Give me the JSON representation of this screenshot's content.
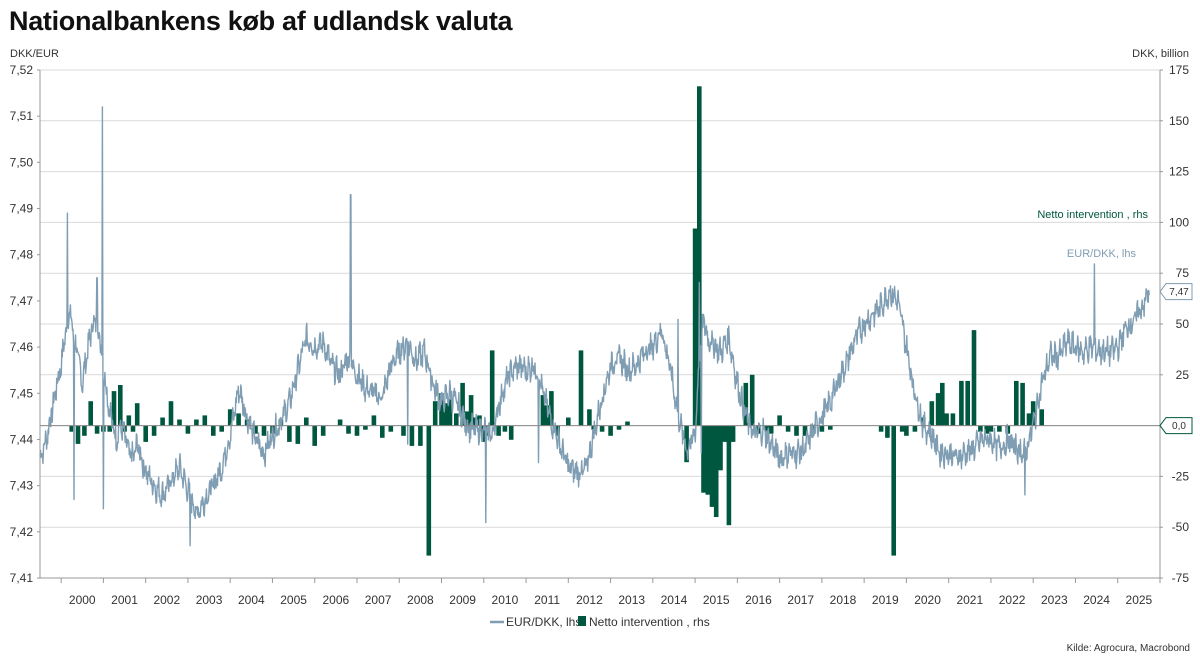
{
  "title": "Nationalbankens køb af udlandsk valuta",
  "source": "Kilde: Agrocura, Macrobond",
  "colors": {
    "eurdkk": "#7f9db3",
    "intervention": "#00573f",
    "grid": "#d9d9d9"
  },
  "chart_data": {
    "type": "line+bar",
    "left_axis": {
      "unit": "DKK/EUR",
      "min": 7.41,
      "max": 7.52,
      "ticks": [
        "7,41",
        "7,42",
        "7,43",
        "7,44",
        "7,45",
        "7,46",
        "7,47",
        "7,48",
        "7,49",
        "7,50",
        "7,51",
        "7,52"
      ]
    },
    "right_axis": {
      "unit": "DKK, billion",
      "min": -75,
      "max": 175,
      "ticks": [
        "-75",
        "-50",
        "-25",
        "0",
        "25",
        "50",
        "75",
        "100",
        "125",
        "150",
        "175"
      ]
    },
    "x_range": [
      1999.5,
      2026
    ],
    "x_ticks": [
      "2000",
      "2001",
      "2002",
      "2003",
      "2004",
      "2005",
      "2006",
      "2007",
      "2008",
      "2009",
      "2010",
      "2011",
      "2012",
      "2013",
      "2014",
      "2015",
      "2016",
      "2017",
      "2018",
      "2019",
      "2020",
      "2021",
      "2022",
      "2023",
      "2024",
      "2025",
      "2026"
    ],
    "legend": [
      {
        "label": "EUR/DKK, lhs"
      },
      {
        "label": "Netto intervention , rhs"
      }
    ],
    "series": [
      {
        "name": "EUR/DKK, lhs",
        "axis": "left",
        "type": "line",
        "points": [
          [
            1999.5,
            7.436
          ],
          [
            1999.65,
            7.44
          ],
          [
            1999.8,
            7.447
          ],
          [
            1999.9,
            7.452
          ],
          [
            2000.0,
            7.456
          ],
          [
            2000.1,
            7.463
          ],
          [
            2000.2,
            7.468
          ],
          [
            2000.3,
            7.462
          ],
          [
            2000.4,
            7.458
          ],
          [
            2000.5,
            7.452
          ],
          [
            2000.6,
            7.458
          ],
          [
            2000.7,
            7.463
          ],
          [
            2000.8,
            7.466
          ],
          [
            2000.9,
            7.463
          ],
          [
            2001.0,
            7.456
          ],
          [
            2001.1,
            7.449
          ],
          [
            2001.2,
            7.444
          ],
          [
            2001.3,
            7.44
          ],
          [
            2001.4,
            7.443
          ],
          [
            2001.5,
            7.441
          ],
          [
            2001.6,
            7.437
          ],
          [
            2001.7,
            7.436
          ],
          [
            2001.8,
            7.439
          ],
          [
            2001.9,
            7.436
          ],
          [
            2002.0,
            7.433
          ],
          [
            2002.2,
            7.43
          ],
          [
            2002.4,
            7.428
          ],
          [
            2002.6,
            7.431
          ],
          [
            2002.8,
            7.434
          ],
          [
            2003.0,
            7.429
          ],
          [
            2003.2,
            7.424
          ],
          [
            2003.4,
            7.427
          ],
          [
            2003.6,
            7.43
          ],
          [
            2003.8,
            7.434
          ],
          [
            2004.0,
            7.441
          ],
          [
            2004.2,
            7.451
          ],
          [
            2004.4,
            7.445
          ],
          [
            2004.6,
            7.44
          ],
          [
            2004.8,
            7.437
          ],
          [
            2005.0,
            7.441
          ],
          [
            2005.2,
            7.444
          ],
          [
            2005.4,
            7.448
          ],
          [
            2005.6,
            7.455
          ],
          [
            2005.8,
            7.462
          ],
          [
            2006.0,
            7.46
          ],
          [
            2006.2,
            7.461
          ],
          [
            2006.4,
            7.456
          ],
          [
            2006.6,
            7.454
          ],
          [
            2006.8,
            7.458
          ],
          [
            2007.0,
            7.454
          ],
          [
            2007.2,
            7.451
          ],
          [
            2007.4,
            7.45
          ],
          [
            2007.6,
            7.449
          ],
          [
            2007.8,
            7.456
          ],
          [
            2008.0,
            7.459
          ],
          [
            2008.2,
            7.461
          ],
          [
            2008.4,
            7.457
          ],
          [
            2008.6,
            7.459
          ],
          [
            2008.8,
            7.452
          ],
          [
            2009.0,
            7.448
          ],
          [
            2009.2,
            7.45
          ],
          [
            2009.4,
            7.447
          ],
          [
            2009.6,
            7.443
          ],
          [
            2009.8,
            7.442
          ],
          [
            2010.0,
            7.442
          ],
          [
            2010.2,
            7.441
          ],
          [
            2010.4,
            7.449
          ],
          [
            2010.6,
            7.454
          ],
          [
            2010.8,
            7.456
          ],
          [
            2011.0,
            7.455
          ],
          [
            2011.2,
            7.456
          ],
          [
            2011.4,
            7.45
          ],
          [
            2011.6,
            7.444
          ],
          [
            2011.8,
            7.439
          ],
          [
            2012.0,
            7.434
          ],
          [
            2012.2,
            7.433
          ],
          [
            2012.4,
            7.433
          ],
          [
            2012.6,
            7.441
          ],
          [
            2012.8,
            7.449
          ],
          [
            2013.0,
            7.456
          ],
          [
            2013.2,
            7.458
          ],
          [
            2013.4,
            7.455
          ],
          [
            2013.6,
            7.456
          ],
          [
            2013.8,
            7.459
          ],
          [
            2014.0,
            7.46
          ],
          [
            2014.2,
            7.464
          ],
          [
            2014.4,
            7.456
          ],
          [
            2014.6,
            7.445
          ],
          [
            2014.8,
            7.438
          ],
          [
            2015.0,
            7.441
          ],
          [
            2015.1,
            7.458
          ],
          [
            2015.2,
            7.466
          ],
          [
            2015.3,
            7.462
          ],
          [
            2015.4,
            7.461
          ],
          [
            2015.6,
            7.459
          ],
          [
            2015.8,
            7.462
          ],
          [
            2016.0,
            7.452
          ],
          [
            2016.2,
            7.445
          ],
          [
            2016.4,
            7.441
          ],
          [
            2016.6,
            7.442
          ],
          [
            2016.8,
            7.439
          ],
          [
            2017.0,
            7.436
          ],
          [
            2017.2,
            7.437
          ],
          [
            2017.4,
            7.437
          ],
          [
            2017.6,
            7.438
          ],
          [
            2017.8,
            7.442
          ],
          [
            2018.0,
            7.445
          ],
          [
            2018.2,
            7.448
          ],
          [
            2018.4,
            7.453
          ],
          [
            2018.6,
            7.457
          ],
          [
            2018.8,
            7.462
          ],
          [
            2019.0,
            7.465
          ],
          [
            2019.2,
            7.467
          ],
          [
            2019.4,
            7.469
          ],
          [
            2019.6,
            7.472
          ],
          [
            2019.8,
            7.47
          ],
          [
            2020.0,
            7.46
          ],
          [
            2020.2,
            7.45
          ],
          [
            2020.4,
            7.443
          ],
          [
            2020.6,
            7.441
          ],
          [
            2020.8,
            7.437
          ],
          [
            2021.0,
            7.437
          ],
          [
            2021.2,
            7.436
          ],
          [
            2021.4,
            7.437
          ],
          [
            2021.6,
            7.438
          ],
          [
            2021.8,
            7.44
          ],
          [
            2022.0,
            7.44
          ],
          [
            2022.2,
            7.438
          ],
          [
            2022.4,
            7.44
          ],
          [
            2022.6,
            7.438
          ],
          [
            2022.8,
            7.437
          ],
          [
            2023.0,
            7.443
          ],
          [
            2023.2,
            7.452
          ],
          [
            2023.4,
            7.458
          ],
          [
            2023.6,
            7.458
          ],
          [
            2023.8,
            7.461
          ],
          [
            2024.0,
            7.46
          ],
          [
            2024.2,
            7.459
          ],
          [
            2024.4,
            7.46
          ],
          [
            2024.6,
            7.459
          ],
          [
            2024.8,
            7.459
          ],
          [
            2025.0,
            7.46
          ],
          [
            2025.2,
            7.464
          ],
          [
            2025.4,
            7.466
          ],
          [
            2025.6,
            7.469
          ],
          [
            2025.75,
            7.472
          ]
        ]
      },
      {
        "name": "Netto intervention , rhs",
        "axis": "right",
        "type": "bar",
        "points": [
          [
            2000.25,
            -3
          ],
          [
            2000.4,
            -9
          ],
          [
            2000.55,
            -5
          ],
          [
            2000.7,
            12
          ],
          [
            2000.85,
            -4
          ],
          [
            2001.0,
            -3
          ],
          [
            2001.15,
            -3
          ],
          [
            2001.25,
            17
          ],
          [
            2001.4,
            20
          ],
          [
            2001.5,
            -3
          ],
          [
            2001.6,
            5
          ],
          [
            2001.7,
            -3
          ],
          [
            2001.8,
            11
          ],
          [
            2002.0,
            -8
          ],
          [
            2002.2,
            -5
          ],
          [
            2002.4,
            4
          ],
          [
            2002.6,
            12
          ],
          [
            2002.8,
            3
          ],
          [
            2003.0,
            -4
          ],
          [
            2003.2,
            3
          ],
          [
            2003.4,
            5
          ],
          [
            2003.6,
            -5
          ],
          [
            2003.8,
            -3
          ],
          [
            2004.0,
            8
          ],
          [
            2004.2,
            6
          ],
          [
            2004.4,
            3
          ],
          [
            2004.6,
            -4
          ],
          [
            2004.8,
            -5
          ],
          [
            2005.0,
            -4
          ],
          [
            2005.2,
            3
          ],
          [
            2005.4,
            -8
          ],
          [
            2005.6,
            -9
          ],
          [
            2005.8,
            4
          ],
          [
            2006.0,
            -10
          ],
          [
            2006.2,
            -5
          ],
          [
            2006.6,
            3
          ],
          [
            2006.8,
            -4
          ],
          [
            2007.0,
            -5
          ],
          [
            2007.2,
            -2
          ],
          [
            2007.4,
            5
          ],
          [
            2007.6,
            -6
          ],
          [
            2007.8,
            -3
          ],
          [
            2008.1,
            -5
          ],
          [
            2008.3,
            -10
          ],
          [
            2008.5,
            -10
          ],
          [
            2008.7,
            -64
          ],
          [
            2008.85,
            12
          ],
          [
            2009.0,
            16
          ],
          [
            2009.1,
            11
          ],
          [
            2009.2,
            13
          ],
          [
            2009.35,
            6
          ],
          [
            2009.5,
            21
          ],
          [
            2009.6,
            7
          ],
          [
            2009.7,
            15
          ],
          [
            2009.8,
            4
          ],
          [
            2009.9,
            5
          ],
          [
            2010.0,
            -8
          ],
          [
            2010.1,
            -5
          ],
          [
            2010.2,
            37
          ],
          [
            2010.35,
            -5
          ],
          [
            2010.5,
            -3
          ],
          [
            2010.65,
            -7
          ],
          [
            2011.4,
            15
          ],
          [
            2011.5,
            10
          ],
          [
            2011.6,
            17
          ],
          [
            2011.75,
            -5
          ],
          [
            2012.0,
            4
          ],
          [
            2012.3,
            37
          ],
          [
            2012.5,
            8
          ],
          [
            2012.6,
            -2
          ],
          [
            2012.8,
            -3
          ],
          [
            2013.0,
            -5
          ],
          [
            2013.2,
            -2
          ],
          [
            2013.4,
            2
          ],
          [
            2014.8,
            -18
          ],
          [
            2015.0,
            97
          ],
          [
            2015.1,
            167
          ],
          [
            2015.2,
            -33
          ],
          [
            2015.3,
            -34
          ],
          [
            2015.4,
            -40
          ],
          [
            2015.5,
            -45
          ],
          [
            2015.6,
            -22
          ],
          [
            2015.7,
            -8
          ],
          [
            2015.8,
            -49
          ],
          [
            2015.9,
            -8
          ],
          [
            2016.2,
            21
          ],
          [
            2016.35,
            25
          ],
          [
            2016.5,
            -4
          ],
          [
            2016.7,
            -3
          ],
          [
            2016.8,
            -4
          ],
          [
            2017.0,
            5
          ],
          [
            2017.2,
            -3
          ],
          [
            2017.4,
            -5
          ],
          [
            2017.6,
            -5
          ],
          [
            2017.8,
            -4
          ],
          [
            2018.0,
            -3
          ],
          [
            2018.2,
            -2
          ],
          [
            2019.4,
            -3
          ],
          [
            2019.55,
            -6
          ],
          [
            2019.7,
            -64
          ],
          [
            2019.9,
            -3
          ],
          [
            2020.0,
            -5
          ],
          [
            2020.2,
            -3
          ],
          [
            2020.4,
            4
          ],
          [
            2020.6,
            12
          ],
          [
            2020.75,
            16
          ],
          [
            2020.85,
            21
          ],
          [
            2020.95,
            6
          ],
          [
            2021.1,
            6
          ],
          [
            2021.3,
            22
          ],
          [
            2021.45,
            22
          ],
          [
            2021.6,
            47
          ],
          [
            2021.75,
            -3
          ],
          [
            2021.9,
            -4
          ],
          [
            2022.0,
            -3
          ],
          [
            2022.2,
            -3
          ],
          [
            2022.4,
            -4
          ],
          [
            2022.6,
            22
          ],
          [
            2022.75,
            21
          ],
          [
            2022.9,
            6
          ],
          [
            2023.0,
            12
          ],
          [
            2023.2,
            8
          ]
        ]
      }
    ],
    "annotations": [
      {
        "text": "Netto intervention , rhs",
        "color": "#00573f"
      },
      {
        "text": "EUR/DKK, lhs",
        "color": "#7f9db3"
      }
    ],
    "value_tags": [
      {
        "axis": "right",
        "value": 0,
        "label": "0,0"
      },
      {
        "axis": "left",
        "value": 7.472,
        "label": "7,47"
      }
    ]
  }
}
